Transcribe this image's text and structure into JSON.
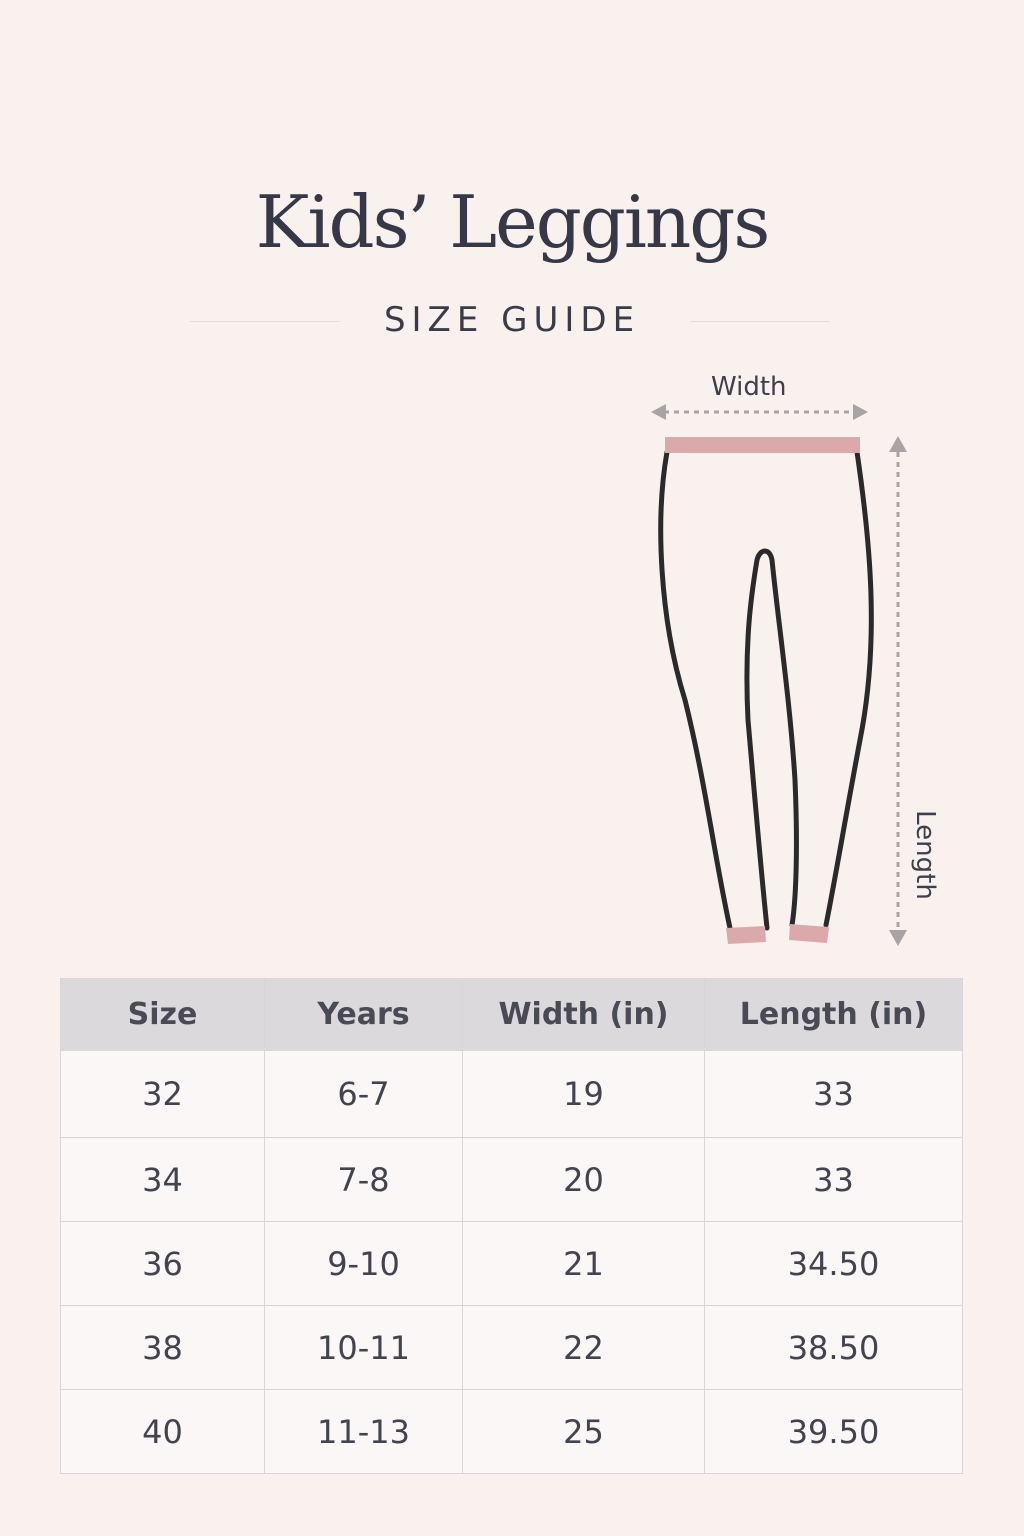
{
  "title": "Kids’ Leggings",
  "subtitle": "SIZE GUIDE",
  "diagram": {
    "width_label": "Width",
    "length_label": "Length",
    "band_color": "#dba9ac",
    "outline_color": "#2a2a2a"
  },
  "table": {
    "headers": [
      "Size",
      "Years",
      "Width (in)",
      "Length (in)"
    ],
    "rows": [
      [
        "32",
        "6-7",
        "19",
        "33"
      ],
      [
        "34",
        "7-8",
        "20",
        "33"
      ],
      [
        "36",
        "9-10",
        "21",
        "34.50"
      ],
      [
        "38",
        "10-11",
        "22",
        "38.50"
      ],
      [
        "40",
        "11-13",
        "25",
        "39.50"
      ]
    ]
  }
}
